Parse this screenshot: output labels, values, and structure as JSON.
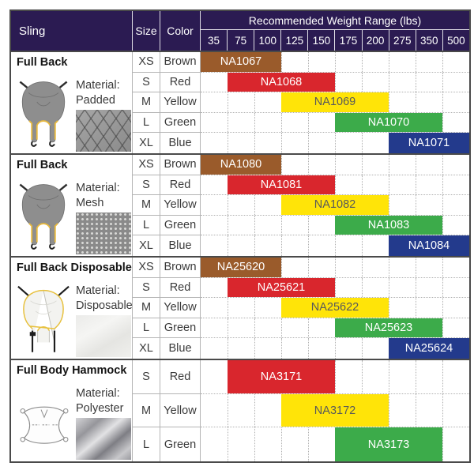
{
  "header": {
    "sling": "Sling",
    "size": "Size",
    "color": "Color",
    "weight_title": "Recommended Weight Range (lbs)"
  },
  "style": {
    "header_bg": "#2b1b52",
    "border_dark": "#4a4a4a",
    "grid_light": "#b0b0b0",
    "trim_yellow": "#e8b93d"
  },
  "chart_data": {
    "type": "table",
    "title": "Recommended Weight Range (lbs)",
    "columns_lbs": [
      "35",
      "75",
      "100",
      "125",
      "150",
      "175",
      "200",
      "275",
      "350",
      "500"
    ],
    "colors": {
      "Brown": {
        "bg": "#9a5b2b",
        "text": "#ffffff"
      },
      "Red": {
        "bg": "#d9262d",
        "text": "#ffffff"
      },
      "Yellow": {
        "bg": "#ffe408",
        "text": "#58595b"
      },
      "Green": {
        "bg": "#3cab4a",
        "text": "#ffffff"
      },
      "Blue": {
        "bg": "#233a8c",
        "text": "#ffffff"
      }
    },
    "groups": [
      {
        "title": "Full Back",
        "material_label": "Material:",
        "material": "Padded",
        "rows": [
          {
            "size": "XS",
            "color": "Brown",
            "sku": "NA1067",
            "col_start": 0,
            "col_end": 2,
            "range_lbs": [
              35,
              100
            ]
          },
          {
            "size": "S",
            "color": "Red",
            "sku": "NA1068",
            "col_start": 1,
            "col_end": 4,
            "range_lbs": [
              75,
              150
            ]
          },
          {
            "size": "M",
            "color": "Yellow",
            "sku": "NA1069",
            "col_start": 3,
            "col_end": 6,
            "range_lbs": [
              125,
              200
            ]
          },
          {
            "size": "L",
            "color": "Green",
            "sku": "NA1070",
            "col_start": 5,
            "col_end": 8,
            "range_lbs": [
              175,
              350
            ]
          },
          {
            "size": "XL",
            "color": "Blue",
            "sku": "NA1071",
            "col_start": 7,
            "col_end": 9,
            "range_lbs": [
              275,
              500
            ]
          }
        ]
      },
      {
        "title": "Full Back",
        "material_label": "Material:",
        "material": "Mesh",
        "rows": [
          {
            "size": "XS",
            "color": "Brown",
            "sku": "NA1080",
            "col_start": 0,
            "col_end": 2,
            "range_lbs": [
              35,
              100
            ]
          },
          {
            "size": "S",
            "color": "Red",
            "sku": "NA1081",
            "col_start": 1,
            "col_end": 4,
            "range_lbs": [
              75,
              150
            ]
          },
          {
            "size": "M",
            "color": "Yellow",
            "sku": "NA1082",
            "col_start": 3,
            "col_end": 6,
            "range_lbs": [
              125,
              200
            ]
          },
          {
            "size": "L",
            "color": "Green",
            "sku": "NA1083",
            "col_start": 5,
            "col_end": 8,
            "range_lbs": [
              175,
              350
            ]
          },
          {
            "size": "XL",
            "color": "Blue",
            "sku": "NA1084",
            "col_start": 7,
            "col_end": 9,
            "range_lbs": [
              275,
              500
            ]
          }
        ]
      },
      {
        "title": "Full Back Disposable",
        "material_label": "Material:",
        "material": "Disposable",
        "rows": [
          {
            "size": "XS",
            "color": "Brown",
            "sku": "NA25620",
            "col_start": 0,
            "col_end": 2,
            "range_lbs": [
              35,
              100
            ]
          },
          {
            "size": "S",
            "color": "Red",
            "sku": "NA25621",
            "col_start": 1,
            "col_end": 4,
            "range_lbs": [
              75,
              150
            ]
          },
          {
            "size": "M",
            "color": "Yellow",
            "sku": "NA25622",
            "col_start": 3,
            "col_end": 6,
            "range_lbs": [
              125,
              200
            ]
          },
          {
            "size": "L",
            "color": "Green",
            "sku": "NA25623",
            "col_start": 5,
            "col_end": 8,
            "range_lbs": [
              175,
              350
            ]
          },
          {
            "size": "XL",
            "color": "Blue",
            "sku": "NA25624",
            "col_start": 7,
            "col_end": 9,
            "range_lbs": [
              275,
              500
            ]
          }
        ]
      },
      {
        "title": "Full Body Hammock",
        "material_label": "Material:",
        "material": "Polyester",
        "rows": [
          {
            "size": "S",
            "color": "Red",
            "sku": "NA3171",
            "col_start": 1,
            "col_end": 4,
            "range_lbs": [
              75,
              150
            ]
          },
          {
            "size": "M",
            "color": "Yellow",
            "sku": "NA3172",
            "col_start": 3,
            "col_end": 6,
            "range_lbs": [
              125,
              200
            ]
          },
          {
            "size": "L",
            "color": "Green",
            "sku": "NA3173",
            "col_start": 5,
            "col_end": 8,
            "range_lbs": [
              175,
              350
            ]
          }
        ]
      }
    ]
  }
}
